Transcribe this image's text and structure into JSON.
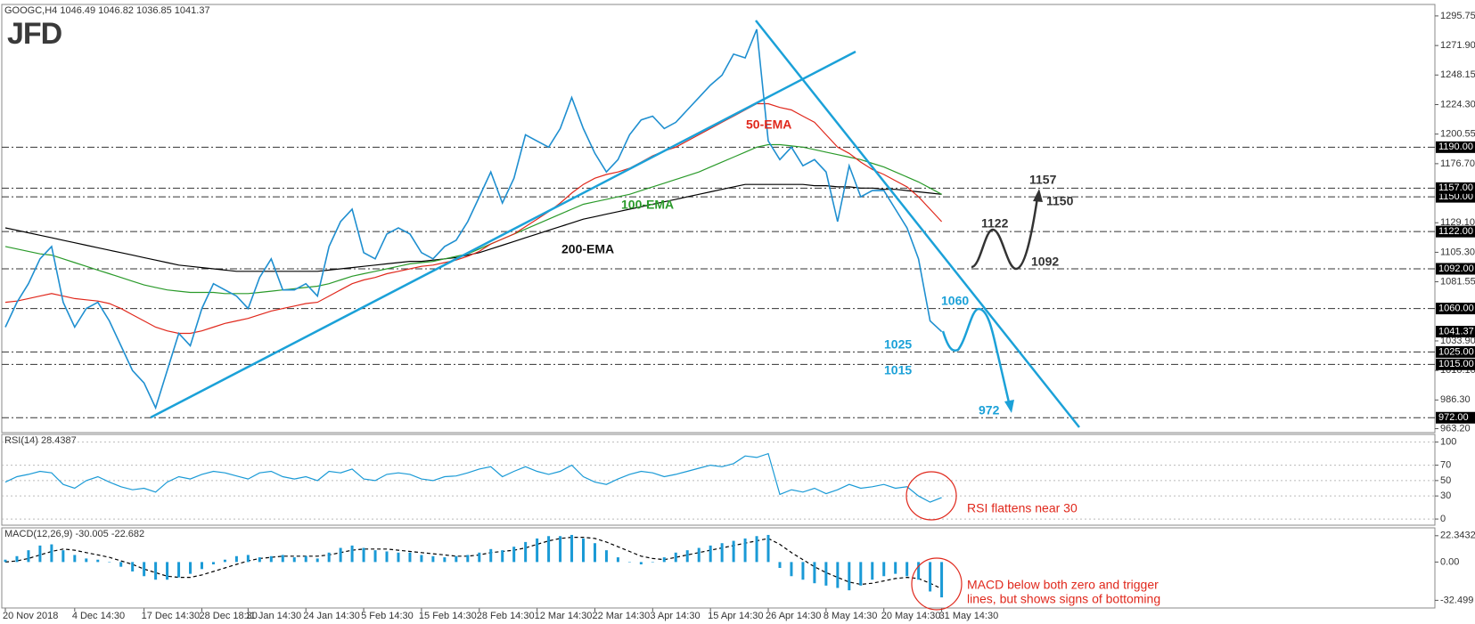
{
  "logo": "JFD",
  "chart_data": [
    {
      "type": "line",
      "title": "GOOGC,H4 1046.49 1046.82 1036.85 1041.37",
      "categories": [
        "20 Nov 2018",
        null,
        null,
        null,
        null,
        null,
        "4 Dec 14:30",
        null,
        null,
        null,
        null,
        null,
        "17 Dec 14:30",
        null,
        null,
        null,
        null,
        "28 Dec 18:30",
        null,
        null,
        null,
        "11 Jan 14:30",
        null,
        null,
        null,
        null,
        "24 Jan 14:30",
        null,
        null,
        null,
        null,
        "5 Feb 14:30",
        null,
        null,
        null,
        null,
        "15 Feb 14:30",
        null,
        null,
        null,
        null,
        "28 Feb 14:30",
        null,
        null,
        null,
        null,
        "12 Mar 14:30",
        null,
        null,
        null,
        null,
        "22 Mar 14:30",
        null,
        null,
        null,
        null,
        "3 Apr 14:30",
        null,
        null,
        null,
        null,
        "15 Apr 14:30",
        null,
        null,
        null,
        null,
        "26 Apr 14:30",
        null,
        null,
        null,
        null,
        "8 May 14:30",
        null,
        null,
        null,
        null,
        "20 May 14:30",
        null,
        null,
        null,
        null,
        "31 May 14:30"
      ],
      "series": [
        {
          "color": "#1f8fd0",
          "values": [
            1045,
            1065,
            1080,
            1100,
            1110,
            1065,
            1045,
            1060,
            1065,
            1050,
            1030,
            1010,
            1000,
            980,
            1010,
            1040,
            1030,
            1060,
            1080,
            1075,
            1070,
            1060,
            1085,
            1100,
            1075,
            1075,
            1080,
            1070,
            1110,
            1130,
            1140,
            1105,
            1100,
            1120,
            1125,
            1120,
            1105,
            1100,
            1110,
            1115,
            1130,
            1150,
            1170,
            1145,
            1165,
            1200,
            1195,
            1190,
            1205,
            1230,
            1205,
            1185,
            1170,
            1180,
            1200,
            1212,
            1215,
            1205,
            1210,
            1220,
            1230,
            1240,
            1248,
            1265,
            1262,
            1285,
            1195,
            1180,
            1190,
            1175,
            1180,
            1170,
            1130,
            1175,
            1150,
            1155,
            1155,
            1140,
            1125,
            1100,
            1050,
            1041.37
          ]
        },
        {
          "name": "50-EMA",
          "color": "#e0281c",
          "values": [
            1065,
            1066,
            1068,
            1070,
            1072,
            1070,
            1068,
            1067,
            1066,
            1064,
            1060,
            1055,
            1050,
            1045,
            1042,
            1040,
            1040,
            1042,
            1045,
            1048,
            1050,
            1052,
            1055,
            1058,
            1060,
            1062,
            1064,
            1065,
            1070,
            1075,
            1080,
            1083,
            1085,
            1088,
            1090,
            1092,
            1094,
            1095,
            1097,
            1099,
            1102,
            1106,
            1112,
            1116,
            1120,
            1126,
            1132,
            1138,
            1145,
            1153,
            1160,
            1165,
            1168,
            1170,
            1173,
            1178,
            1183,
            1187,
            1190,
            1195,
            1200,
            1205,
            1210,
            1215,
            1220,
            1225,
            1225,
            1222,
            1220,
            1215,
            1210,
            1200,
            1190,
            1185,
            1178,
            1172,
            1168,
            1163,
            1158,
            1150,
            1140,
            1130
          ]
        },
        {
          "name": "100-EMA",
          "color": "#2a9a2a",
          "values": [
            1110,
            1108,
            1106,
            1104,
            1103,
            1100,
            1097,
            1094,
            1091,
            1088,
            1085,
            1082,
            1079,
            1077,
            1075,
            1074,
            1073,
            1073,
            1073,
            1072,
            1072,
            1072,
            1073,
            1074,
            1075,
            1076,
            1077,
            1078,
            1080,
            1083,
            1086,
            1088,
            1090,
            1092,
            1094,
            1096,
            1097,
            1098,
            1100,
            1102,
            1104,
            1108,
            1112,
            1116,
            1120,
            1124,
            1128,
            1132,
            1136,
            1140,
            1144,
            1146,
            1148,
            1150,
            1152,
            1155,
            1158,
            1161,
            1164,
            1167,
            1170,
            1174,
            1178,
            1182,
            1186,
            1190,
            1192,
            1192,
            1191,
            1190,
            1188,
            1186,
            1184,
            1182,
            1180,
            1177,
            1174,
            1170,
            1166,
            1162,
            1157,
            1152
          ]
        },
        {
          "name": "200-EMA",
          "color": "#000000",
          "values": [
            1125,
            1123,
            1121,
            1119,
            1117,
            1115,
            1113,
            1111,
            1109,
            1107,
            1105,
            1103,
            1101,
            1099,
            1097,
            1095,
            1094,
            1093,
            1092,
            1091,
            1090,
            1090,
            1090,
            1090,
            1090,
            1090,
            1090,
            1090,
            1091,
            1092,
            1093,
            1094,
            1095,
            1096,
            1097,
            1098,
            1098,
            1099,
            1100,
            1101,
            1103,
            1105,
            1108,
            1111,
            1114,
            1117,
            1120,
            1123,
            1126,
            1129,
            1132,
            1134,
            1136,
            1138,
            1140,
            1142,
            1144,
            1146,
            1148,
            1150,
            1152,
            1154,
            1156,
            1158,
            1160,
            1160,
            1160,
            1160,
            1160,
            1160,
            1159,
            1159,
            1158,
            1158,
            1157,
            1157,
            1156,
            1156,
            1155,
            1154,
            1153,
            1152
          ]
        }
      ],
      "ylim": [
        960,
        1305
      ],
      "yticks": [
        1295.75,
        {
          "value": 1271.9,
          "label": "1271.90"
        },
        1248.15,
        {
          "value": 1224.3,
          "label": "1224.30"
        },
        1200.55,
        {
          "value": 1176.7,
          "label": "1176.70"
        },
        {
          "value": 1129.1,
          "label": "1129.10"
        },
        {
          "value": 1105.3,
          "label": "1105.30"
        },
        1081.55,
        {
          "value": 1033.9,
          "label": "1033.90"
        },
        {
          "value": 1010.1,
          "label": "1010.10"
        },
        {
          "value": 986.3,
          "label": "986.30"
        },
        {
          "value": 963.2,
          "label": "963.20"
        }
      ],
      "levels": [
        {
          "value": 1190,
          "label": "1190.00"
        },
        {
          "value": 1157,
          "label": "1157.00"
        },
        {
          "value": 1150,
          "label": "1150.00"
        },
        {
          "value": 1122,
          "label": "1122.00"
        },
        {
          "value": 1092,
          "label": "1092.00"
        },
        {
          "value": 1060,
          "label": "1060.00"
        },
        {
          "value": 1025,
          "label": "1025.00"
        },
        {
          "value": 1015,
          "label": "1015.00"
        },
        {
          "value": 972,
          "label": "972.00"
        }
      ],
      "current_price": 1041.37,
      "annotations": [
        "1157",
        "1150",
        "1122",
        "1092",
        "1060",
        "1025",
        "1015",
        "972"
      ]
    },
    {
      "type": "line",
      "title": "RSI(14) 28.4387",
      "series": [
        {
          "color": "#1a9ad6",
          "values": [
            48,
            55,
            58,
            62,
            60,
            45,
            40,
            50,
            55,
            48,
            42,
            38,
            40,
            35,
            48,
            55,
            52,
            58,
            62,
            60,
            56,
            52,
            60,
            62,
            55,
            52,
            55,
            50,
            62,
            60,
            65,
            52,
            50,
            58,
            60,
            58,
            52,
            50,
            55,
            56,
            60,
            65,
            68,
            55,
            62,
            68,
            62,
            58,
            62,
            70,
            55,
            48,
            45,
            52,
            58,
            62,
            60,
            55,
            58,
            62,
            66,
            70,
            68,
            72,
            82,
            80,
            85,
            32,
            38,
            35,
            40,
            33,
            38,
            45,
            40,
            42,
            45,
            40,
            42,
            30,
            22,
            28
          ]
        }
      ],
      "ylim": [
        -8,
        110
      ],
      "yticks": [
        100,
        70,
        50,
        30,
        0
      ],
      "grid": true,
      "annotation": "RSI flattens near 30"
    },
    {
      "type": "bar",
      "title": "MACD(12,26,9) -30.005 -22.682",
      "series": [
        {
          "type": "bar",
          "color": "#1a9ad6",
          "values": [
            2,
            5,
            10,
            14,
            15,
            10,
            6,
            3,
            2,
            0,
            -4,
            -8,
            -12,
            -15,
            -15,
            -13,
            -10,
            -6,
            -2,
            2,
            5,
            6,
            4,
            5,
            6,
            4,
            5,
            3,
            8,
            12,
            14,
            12,
            10,
            9,
            8,
            8,
            6,
            5,
            4,
            5,
            6,
            8,
            11,
            10,
            13,
            17,
            20,
            22,
            22,
            23,
            20,
            16,
            10,
            4,
            0,
            -2,
            0,
            4,
            8,
            10,
            12,
            14,
            16,
            18,
            20,
            22,
            23,
            -5,
            -12,
            -15,
            -18,
            -20,
            -22,
            -24,
            -20,
            -15,
            -12,
            -10,
            -12,
            -15,
            -25,
            -30
          ]
        },
        {
          "type": "line",
          "dashed": true,
          "color": "#000000",
          "values": [
            0,
            1,
            3,
            6,
            9,
            11,
            10,
            8,
            6,
            4,
            1,
            -2,
            -6,
            -9,
            -12,
            -13,
            -13,
            -11,
            -8,
            -5,
            -2,
            1,
            3,
            4,
            5,
            5,
            5,
            5,
            6,
            8,
            10,
            11,
            11,
            11,
            10,
            9,
            8,
            7,
            6,
            5,
            5,
            6,
            8,
            9,
            10,
            12,
            15,
            18,
            20,
            21,
            21,
            20,
            17,
            13,
            9,
            5,
            3,
            2,
            4,
            6,
            8,
            10,
            12,
            14,
            16,
            18,
            20,
            15,
            8,
            2,
            -4,
            -9,
            -13,
            -17,
            -19,
            -18,
            -16,
            -14,
            -13,
            -14,
            -18,
            -22.682
          ]
        }
      ],
      "ylim": [
        -39,
        29
      ],
      "yticks": [
        22.3432,
        {
          "value": 0,
          "label": "0.00"
        },
        -32.499
      ],
      "annotation": [
        "MACD below both zero and trigger",
        "lines, but shows signs of bottoming"
      ]
    }
  ]
}
